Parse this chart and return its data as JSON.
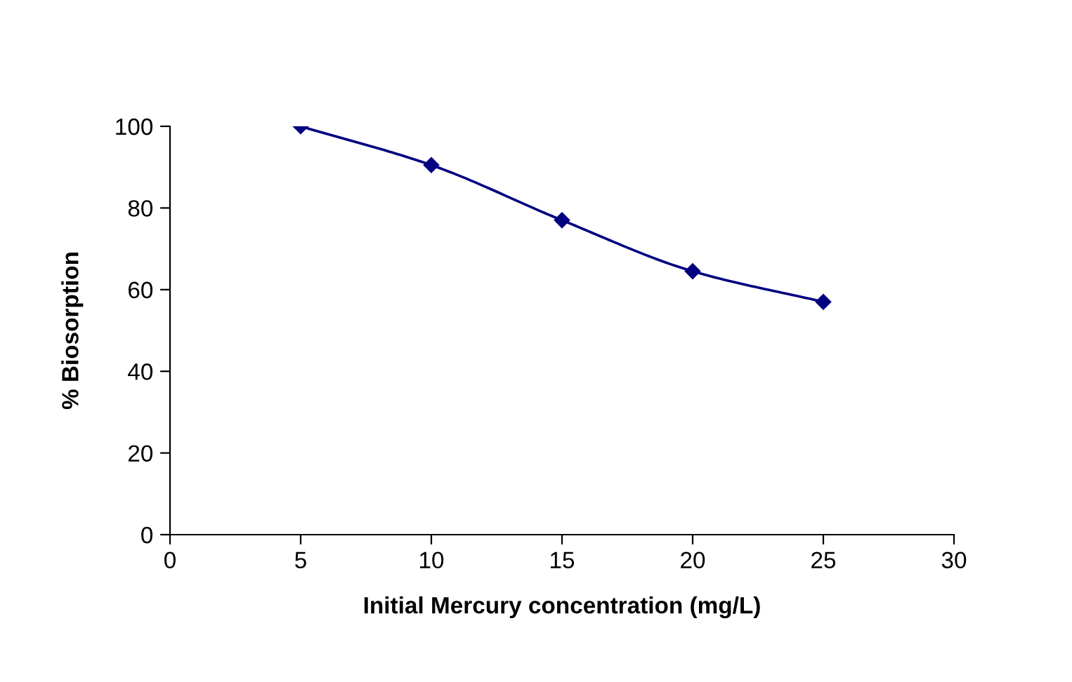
{
  "chart_data": {
    "type": "line",
    "xlabel": "Initial Mercury concentration (mg/L)",
    "ylabel": "% Biosorption",
    "series": [
      {
        "color": "#000080",
        "x": [
          5,
          10,
          15,
          20,
          25
        ],
        "values": [
          100,
          90.5,
          77,
          64.5,
          57
        ]
      }
    ],
    "xlim": [
      0,
      30
    ],
    "xticks": [
      0,
      5,
      10,
      15,
      20,
      25,
      30
    ],
    "ylim": [
      0,
      100
    ],
    "yticks": [
      0,
      20,
      40,
      60,
      80,
      100
    ],
    "grid": false,
    "legend": false,
    "marker": "diamond",
    "line_style": "solid"
  }
}
